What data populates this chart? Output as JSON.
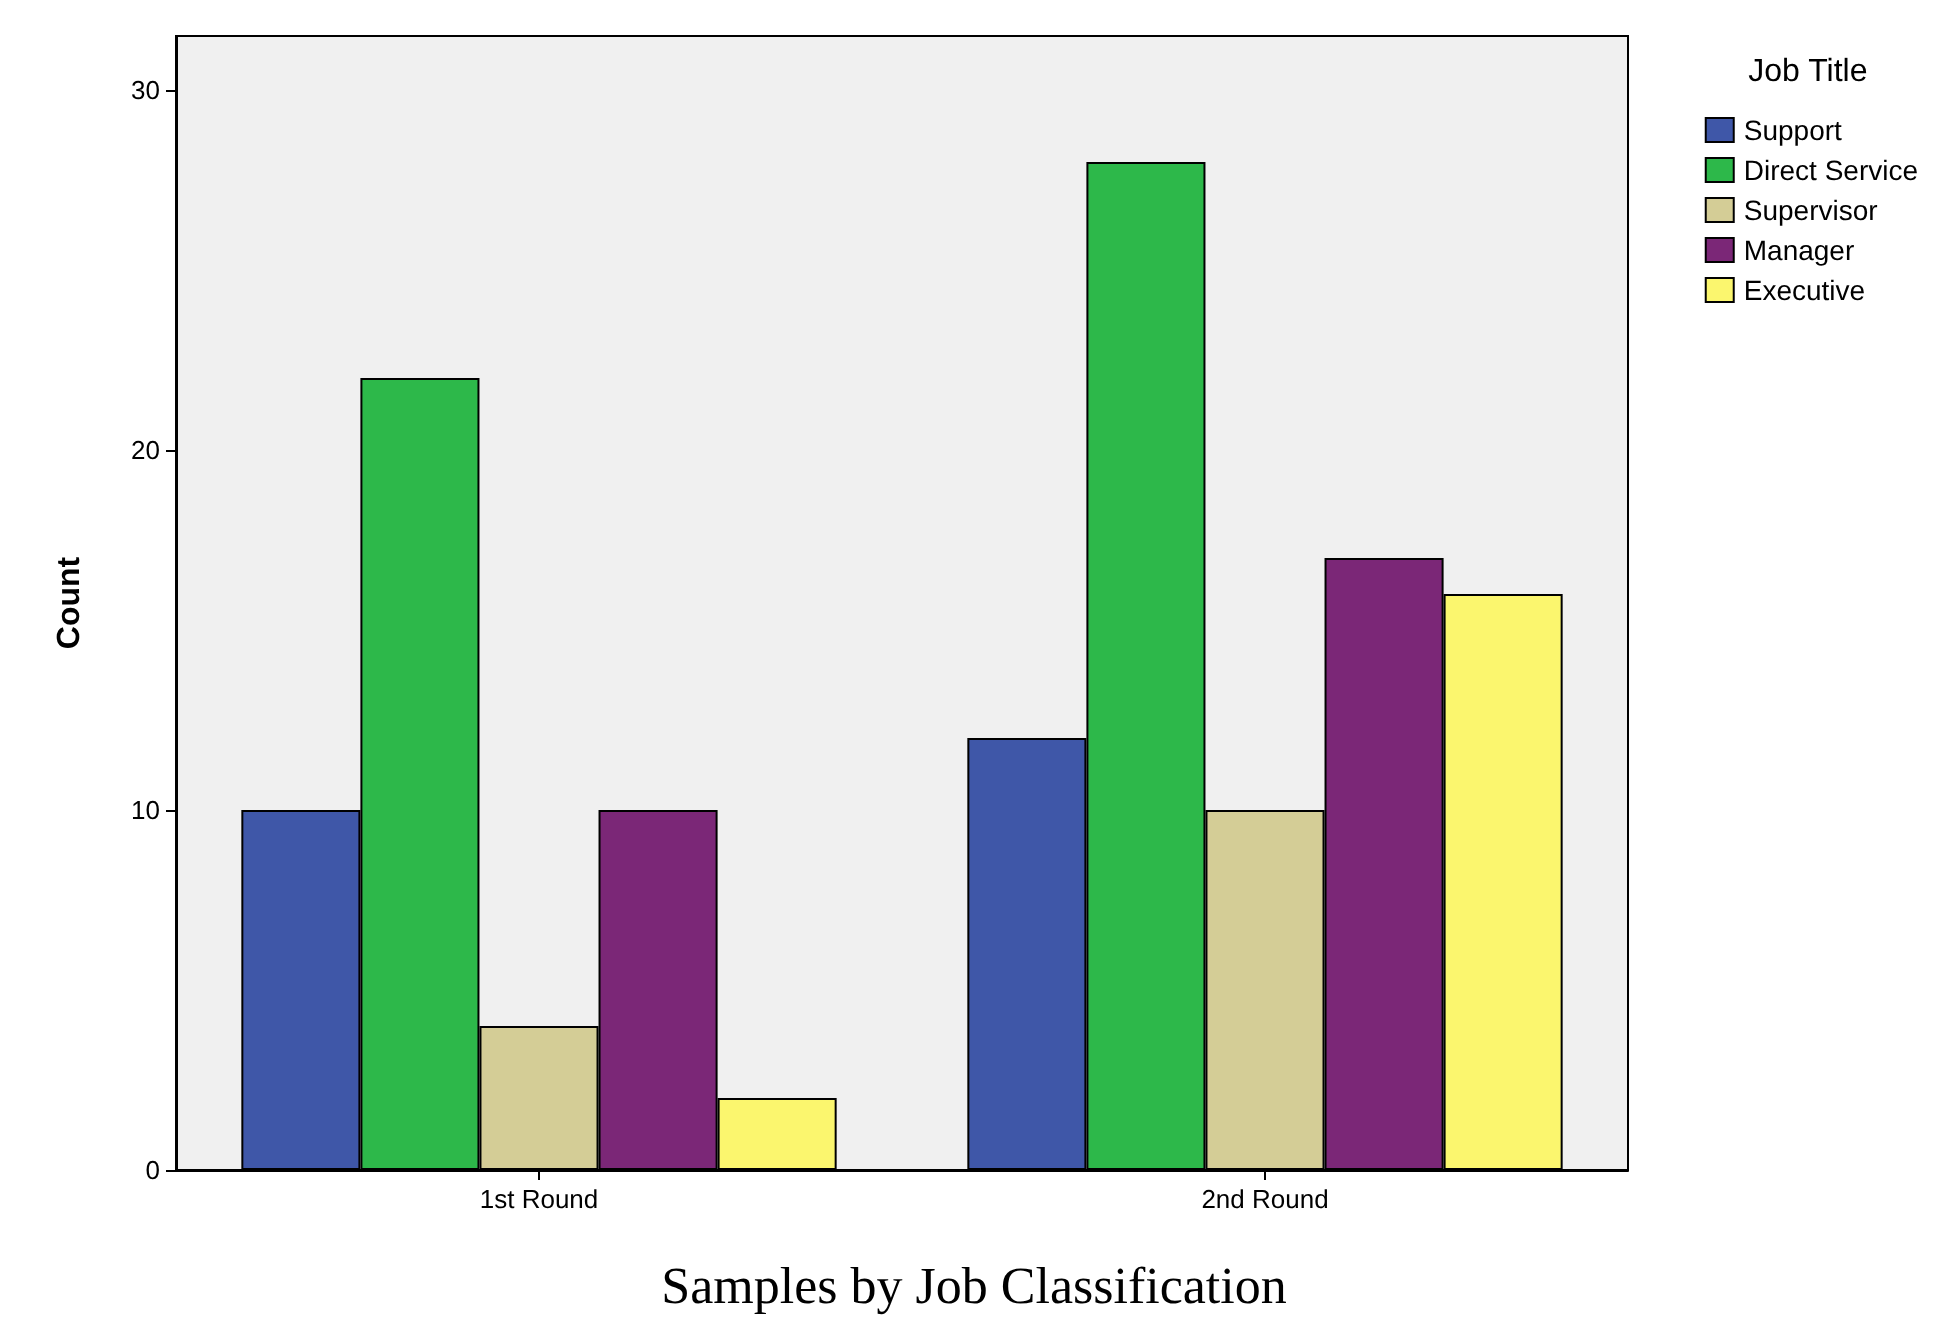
{
  "chart_data": {
    "type": "bar",
    "title": "Samples by Job Classification",
    "ylabel": "Count",
    "legend_title": "Job Title",
    "categories": [
      "1st Round",
      "2nd Round"
    ],
    "series": [
      {
        "name": "Support",
        "color": "#3f57a8",
        "values": [
          10,
          12
        ]
      },
      {
        "name": "Direct Service",
        "color": "#2db84a",
        "values": [
          22,
          28
        ]
      },
      {
        "name": "Supervisor",
        "color": "#d4cd96",
        "values": [
          4,
          10
        ]
      },
      {
        "name": "Manager",
        "color": "#7b2777",
        "values": [
          10,
          17
        ]
      },
      {
        "name": "Executive",
        "color": "#fbf66e",
        "values": [
          2,
          16
        ]
      }
    ],
    "ylim": [
      0,
      31.5
    ],
    "yticks": [
      0,
      10,
      20,
      30
    ],
    "grid": false,
    "legend": "top right"
  }
}
